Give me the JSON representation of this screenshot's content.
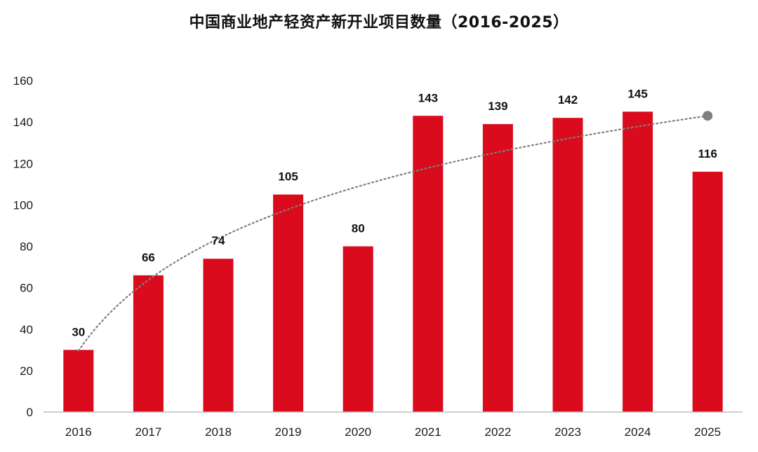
{
  "chart_data": {
    "type": "bar",
    "title": "中国商业地产轻资产新开业项目数量（2016-2025）",
    "categories": [
      "2016",
      "2017",
      "2018",
      "2019",
      "2020",
      "2021",
      "2022",
      "2023",
      "2024",
      "2025"
    ],
    "series": [
      {
        "values": [
          30,
          66,
          74,
          105,
          80,
          143,
          139,
          142,
          145,
          116
        ],
        "color": "#d90b1c"
      }
    ],
    "trendline": {
      "type": "logarithmic",
      "style": "dotted",
      "color": "#7f7f7f",
      "end_marker": true
    },
    "ylim": [
      0,
      160
    ],
    "yticks": [
      "0",
      "20",
      "40",
      "60",
      "80",
      "100",
      "120",
      "140",
      "160"
    ],
    "xlabel": "",
    "ylabel": "",
    "grid": false,
    "legend": "none",
    "data_labels": true
  }
}
